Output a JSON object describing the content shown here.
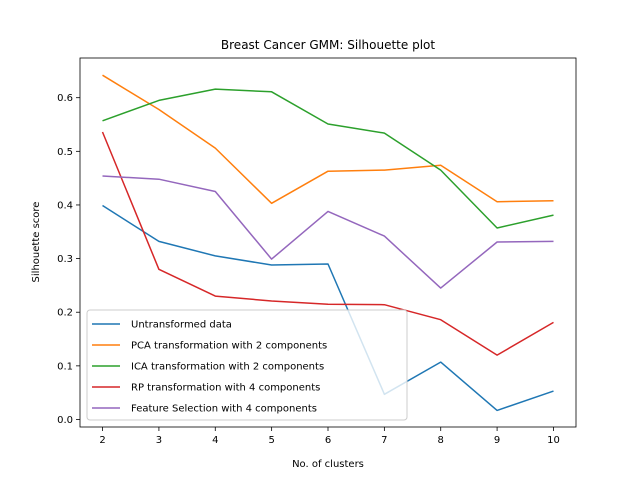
{
  "chart_data": {
    "type": "line",
    "title": "Breast Cancer GMM: Silhouette plot",
    "xlabel": "No. of clusters",
    "ylabel": "Silhouette score",
    "x": [
      2,
      3,
      4,
      5,
      6,
      7,
      8,
      9,
      10
    ],
    "xlim": [
      1.6,
      10.4
    ],
    "ylim": [
      -0.014,
      0.674
    ],
    "xticks": [
      "2",
      "3",
      "4",
      "5",
      "6",
      "7",
      "8",
      "9",
      "10"
    ],
    "yticks": [
      "0.0",
      "0.1",
      "0.2",
      "0.3",
      "0.4",
      "0.5",
      "0.6"
    ],
    "legend_position": "lower-left",
    "grid": false,
    "series": [
      {
        "name": "Untransformed data",
        "color": "#1f77b4",
        "values": [
          0.399,
          0.332,
          0.305,
          0.288,
          0.29,
          0.047,
          0.107,
          0.017,
          0.053
        ]
      },
      {
        "name": "PCA transformation with 2 components",
        "color": "#ff7f0e",
        "values": [
          0.642,
          0.578,
          0.506,
          0.403,
          0.463,
          0.465,
          0.474,
          0.406,
          0.408
        ]
      },
      {
        "name": "ICA transformation with 2 components",
        "color": "#2ca02c",
        "values": [
          0.557,
          0.595,
          0.616,
          0.611,
          0.551,
          0.534,
          0.465,
          0.357,
          0.381
        ]
      },
      {
        "name": "RP transformation with 4 components",
        "color": "#d62728",
        "values": [
          0.536,
          0.28,
          0.23,
          0.221,
          0.215,
          0.214,
          0.186,
          0.12,
          0.181
        ]
      },
      {
        "name": "Feature Selection with 4 components",
        "color": "#9467bd",
        "values": [
          0.454,
          0.448,
          0.425,
          0.299,
          0.388,
          0.342,
          0.245,
          0.331,
          0.332
        ]
      }
    ]
  }
}
